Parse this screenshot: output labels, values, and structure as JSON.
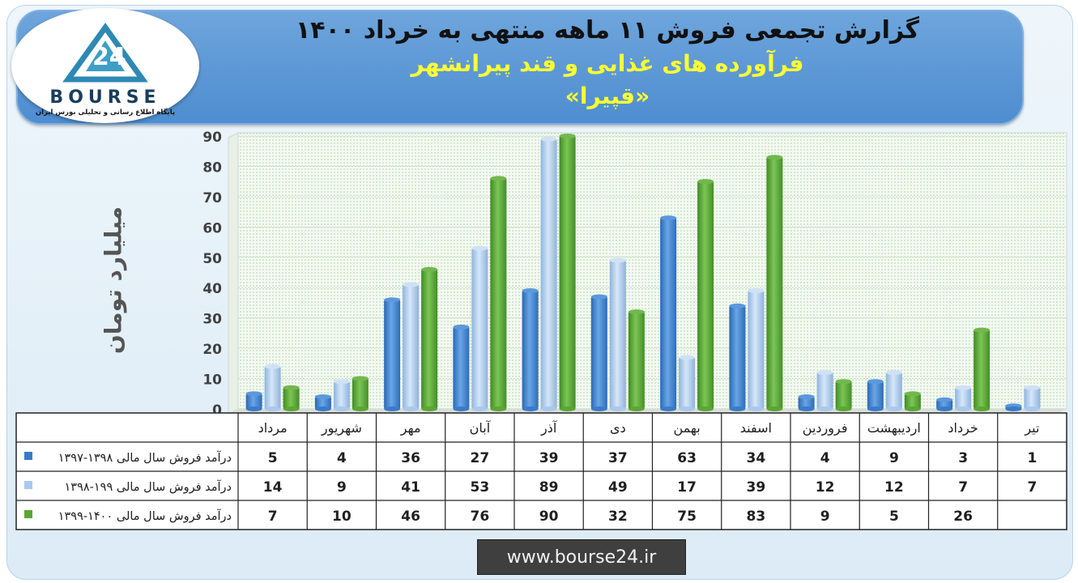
{
  "title": {
    "line1": "گزارش تجمعی فروش ۱۱ ماهه منتهی به خرداد ۱۴۰۰",
    "line2": "فرآورده های غذایی و قند پیرانشهر",
    "line3": "«قپیرا»"
  },
  "logo": {
    "text": "BOURSE",
    "subtitle": "پایگاه اطلاع رسانی و تحلیلی بورس ایران"
  },
  "footer": {
    "url": "www.bourse24.ir"
  },
  "colors": {
    "series1": "#3a7bc8",
    "series2": "#a9c8ec",
    "series3": "#5aa633"
  },
  "chart_data": {
    "type": "bar",
    "title": "",
    "ylabel": "میلیارد تومان",
    "xlabel": "",
    "ylim": [
      0,
      90
    ],
    "yticks": [
      0,
      10,
      20,
      30,
      40,
      50,
      60,
      70,
      80,
      90
    ],
    "grid": true,
    "legend": "data-table-left",
    "categories": [
      "مرداد",
      "شهریور",
      "مهر",
      "آبان",
      "آذر",
      "دی",
      "بهمن",
      "اسفند",
      "فروردین",
      "اردیبهشت",
      "خرداد",
      "تیر"
    ],
    "series": [
      {
        "name": "درآمد فروش سال مالی ۱۳۹۸-۱۳۹۷",
        "values": [
          5,
          4,
          36,
          27,
          39,
          37,
          63,
          34,
          4,
          9,
          3,
          1
        ]
      },
      {
        "name": "درآمد فروش سال مالی ۱۹۹-۱۳۹۸",
        "values": [
          14,
          9,
          41,
          53,
          89,
          49,
          17,
          39,
          12,
          12,
          7,
          7
        ]
      },
      {
        "name": "درآمد فروش سال مالی ۱۴۰۰-۱۳۹۹",
        "values": [
          7,
          10,
          46,
          76,
          90,
          32,
          75,
          83,
          9,
          5,
          26,
          null
        ]
      }
    ]
  }
}
